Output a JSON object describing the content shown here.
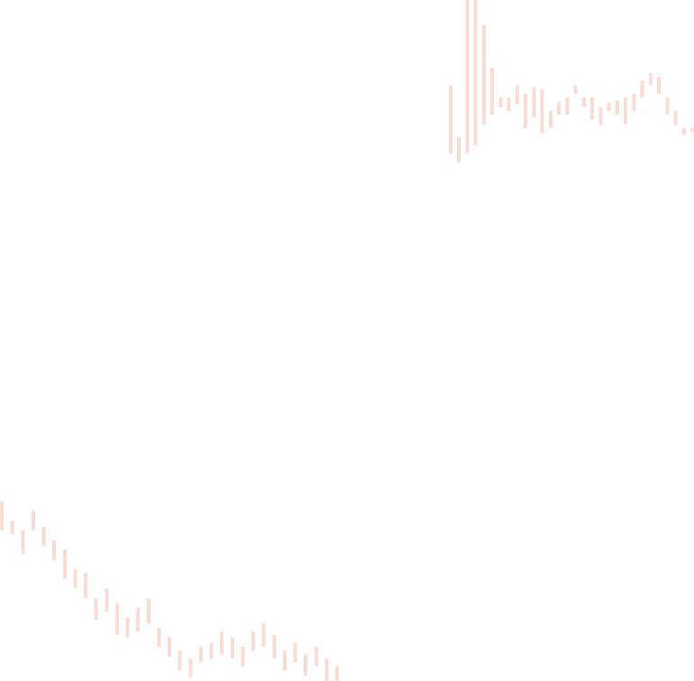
{
  "decoration": {
    "kind": "faint price-tick pattern",
    "color": "#f7ddd6",
    "upper_sequence": [
      [
        0.55,
        0.95
      ],
      [
        0.85,
        1.0
      ],
      [
        0.0,
        0.95
      ],
      [
        0.05,
        0.9
      ],
      [
        0.2,
        0.78
      ],
      [
        0.45,
        0.72
      ],
      [
        0.62,
        0.68
      ],
      [
        0.7,
        0.62
      ],
      [
        0.66,
        0.55
      ],
      [
        0.8,
        0.6
      ],
      [
        0.74,
        0.56
      ],
      [
        0.83,
        0.57
      ],
      [
        0.8,
        0.7
      ],
      [
        0.72,
        0.65
      ],
      [
        0.72,
        0.62
      ],
      [
        0.6,
        0.55
      ],
      [
        0.68,
        0.62
      ],
      [
        0.75,
        0.62
      ],
      [
        0.78,
        0.68
      ],
      [
        0.7,
        0.65
      ],
      [
        0.72,
        0.64
      ],
      [
        0.78,
        0.62
      ],
      [
        0.7,
        0.6
      ],
      [
        0.62,
        0.52
      ],
      [
        0.55,
        0.48
      ],
      [
        0.6,
        0.5
      ],
      [
        0.72,
        0.62
      ],
      [
        0.78,
        0.7
      ],
      [
        0.84,
        0.8
      ],
      [
        0.8,
        0.82
      ]
    ],
    "lower_sequence": [
      [
        0.05,
        0.2
      ],
      [
        0.15,
        0.22
      ],
      [
        0.2,
        0.32
      ],
      [
        0.1,
        0.2
      ],
      [
        0.18,
        0.28
      ],
      [
        0.25,
        0.35
      ],
      [
        0.3,
        0.45
      ],
      [
        0.4,
        0.5
      ],
      [
        0.42,
        0.55
      ],
      [
        0.55,
        0.66
      ],
      [
        0.5,
        0.62
      ],
      [
        0.58,
        0.74
      ],
      [
        0.65,
        0.75
      ],
      [
        0.6,
        0.72
      ],
      [
        0.55,
        0.68
      ],
      [
        0.7,
        0.8
      ],
      [
        0.75,
        0.85
      ],
      [
        0.82,
        0.92
      ],
      [
        0.86,
        0.96
      ],
      [
        0.8,
        0.88
      ],
      [
        0.78,
        0.86
      ],
      [
        0.72,
        0.84
      ],
      [
        0.75,
        0.86
      ],
      [
        0.8,
        0.9
      ],
      [
        0.72,
        0.82
      ],
      [
        0.68,
        0.8
      ],
      [
        0.74,
        0.86
      ],
      [
        0.82,
        0.92
      ],
      [
        0.78,
        0.88
      ],
      [
        0.84,
        0.95
      ],
      [
        0.8,
        0.9
      ],
      [
        0.86,
        0.98
      ],
      [
        0.9,
        1.0
      ]
    ]
  }
}
